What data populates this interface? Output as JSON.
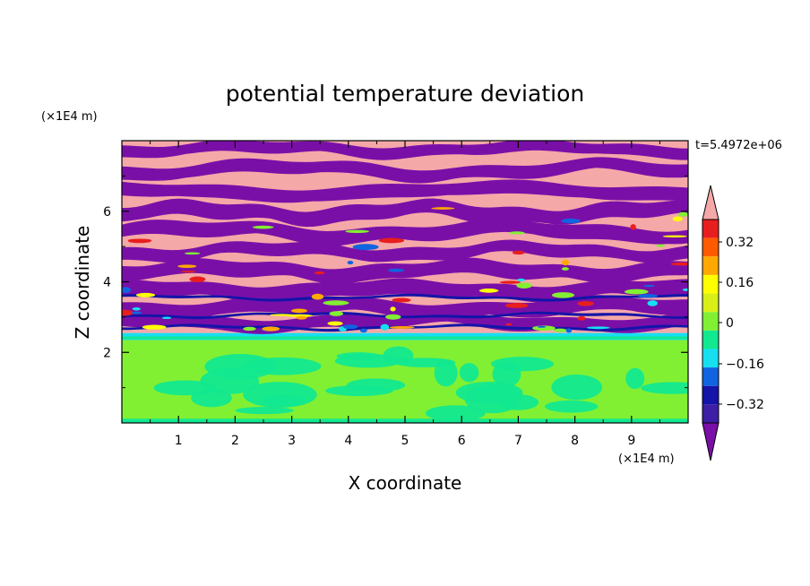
{
  "chart_data": {
    "type": "heatmap",
    "title": "potential temperature deviation",
    "xlabel": "X coordinate",
    "ylabel": "Z coordinate",
    "x_unit": "(×1E4 m)",
    "y_unit": "(×1E4 m)",
    "time_label": "t=5.4972e+06",
    "xlim": [
      0,
      10
    ],
    "ylim": [
      0,
      8
    ],
    "x_ticks": [
      "1",
      "2",
      "3",
      "4",
      "5",
      "6",
      "7",
      "8",
      "9"
    ],
    "y_ticks": [
      "2",
      "4",
      "6"
    ],
    "colorbar": {
      "levels": [
        -0.48,
        -0.4,
        -0.32,
        -0.24,
        -0.16,
        -0.08,
        0,
        0.08,
        0.16,
        0.24,
        0.32,
        0.4,
        0.48
      ],
      "labels": [
        "0.32",
        "0.16",
        "0",
        "−0.16",
        "−0.32"
      ],
      "colors": [
        "#7a0fa8",
        "#3c1fa4",
        "#1414a8",
        "#1064e0",
        "#16e0f0",
        "#12e890",
        "#82f032",
        "#d8f018",
        "#ffff00",
        "#ffa800",
        "#ff5a00",
        "#e81e1e",
        "#f4a8a8"
      ],
      "extend": "both"
    },
    "layers": [
      {
        "z_min": 0,
        "z_max": 2.35,
        "description_class": "green-dominant",
        "colors": [
          "#82f032",
          "#12e890"
        ]
      },
      {
        "z_min": 2.35,
        "z_max": 2.55,
        "description_class": "cyan-band",
        "colors": [
          "#16e0f0",
          "#12e890"
        ]
      },
      {
        "z_min": 2.55,
        "z_max": 8,
        "description_class": "alternating-pink-purple",
        "colors": [
          "#f4a8a8",
          "#7a0fa8"
        ]
      }
    ]
  }
}
